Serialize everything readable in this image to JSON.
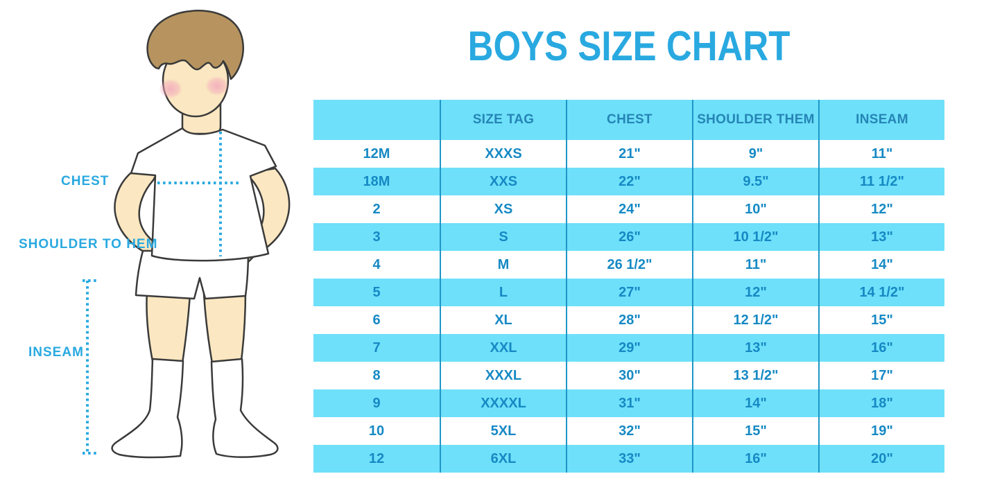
{
  "title": "BOYS SIZE CHART",
  "colors": {
    "accent": "#29A9E0",
    "table_fill": "#6EE0FA",
    "divider": "#1E96C8",
    "header_text": "#2585B5",
    "cell_text": "#1689C4",
    "skin": "#FBE7C1",
    "hair": "#B7945F",
    "cheek": "#F2A9BC",
    "outline": "#3A3A3A"
  },
  "figure_labels": {
    "chest": "CHEST",
    "shoulder_to_hem": "SHOULDER TO HEM",
    "inseam": "INSEAM"
  },
  "chart_data": {
    "type": "table",
    "title": "BOYS SIZE CHART",
    "columns": [
      "",
      "SIZE TAG",
      "CHEST",
      "SHOULDER THEM",
      "INSEAM"
    ],
    "rows": [
      [
        "12M",
        "XXXS",
        "21\"",
        "9\"",
        "11\""
      ],
      [
        "18M",
        "XXS",
        "22\"",
        "9.5\"",
        "11 1/2\""
      ],
      [
        "2",
        "XS",
        "24\"",
        "10\"",
        "12\""
      ],
      [
        "3",
        "S",
        "26\"",
        "10 1/2\"",
        "13\""
      ],
      [
        "4",
        "M",
        "26 1/2\"",
        "11\"",
        "14\""
      ],
      [
        "5",
        "L",
        "27\"",
        "12\"",
        "14 1/2\""
      ],
      [
        "6",
        "XL",
        "28\"",
        "12 1/2\"",
        "15\""
      ],
      [
        "7",
        "XXL",
        "29\"",
        "13\"",
        "16\""
      ],
      [
        "8",
        "XXXL",
        "30\"",
        "13 1/2\"",
        "17\""
      ],
      [
        "9",
        "XXXXL",
        "31\"",
        "14\"",
        "18\""
      ],
      [
        "10",
        "5XL",
        "32\"",
        "15\"",
        "19\""
      ],
      [
        "12",
        "6XL",
        "33\"",
        "16\"",
        "20\""
      ]
    ],
    "row_striping": "alternating white / light-blue, first data row white",
    "legend_position": "none",
    "grid": "vertical column dividers only"
  }
}
